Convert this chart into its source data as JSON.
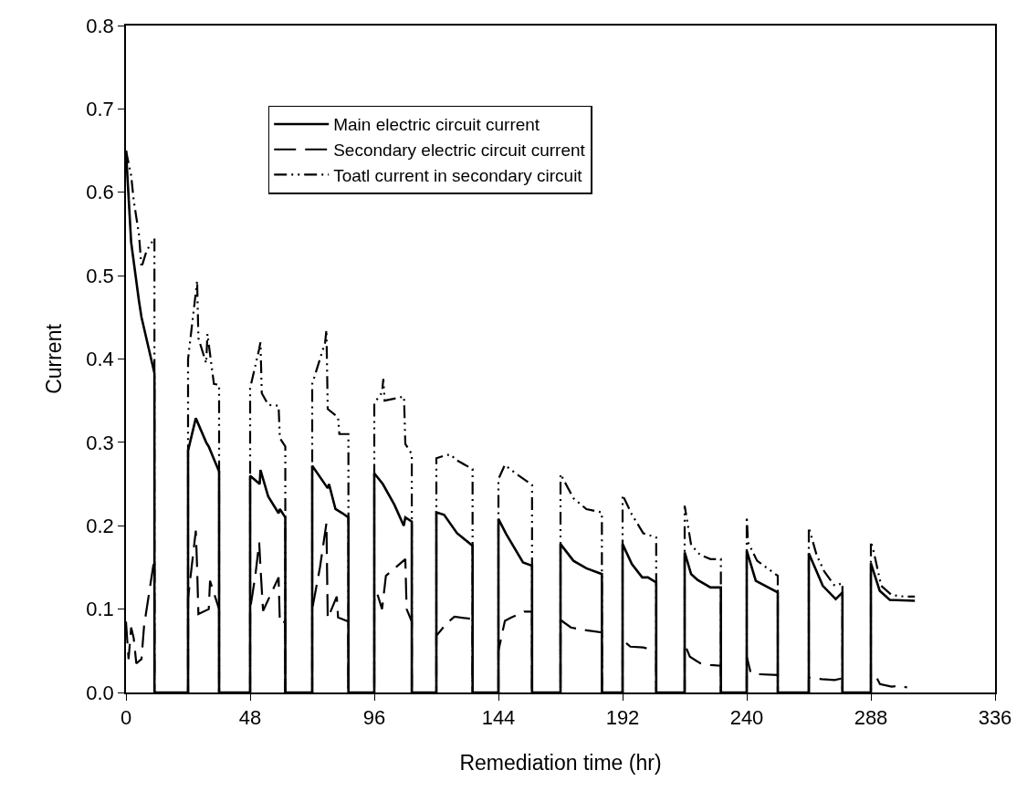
{
  "chart_data": {
    "type": "line",
    "xlabel": "Remediation time (hr)",
    "ylabel": "Current",
    "xlim": [
      0,
      336
    ],
    "xticks": [
      0,
      48,
      96,
      144,
      192,
      240,
      288,
      336
    ],
    "ylim": [
      0,
      0.8
    ],
    "yticks": [
      {
        "value": 0,
        "label": "0.0"
      },
      0.1,
      0.2,
      0.3,
      0.4,
      0.5,
      0.6,
      0.7,
      0.8
    ],
    "legend": "top",
    "marker": "none",
    "series": [
      {
        "name": "Main electric circuit current",
        "color": "#000000",
        "line_style": "solid",
        "x": [
          0,
          2,
          5,
          6,
          11,
          11,
          24,
          24,
          27,
          31,
          32,
          34,
          36,
          36,
          48,
          48,
          51.7,
          52,
          55,
          59,
          59.5,
          61.6,
          61.6,
          72,
          72,
          78,
          78.5,
          81,
          83.7,
          86,
          86,
          96,
          96,
          99.3,
          103.8,
          107.4,
          108,
          110.5,
          110.5,
          120,
          120,
          123,
          128,
          134,
          134,
          144,
          144,
          147,
          153.5,
          157,
          157,
          168,
          168,
          173,
          178,
          184,
          184,
          192,
          192,
          195.6,
          199.6,
          201.8,
          205,
          205,
          216,
          216,
          218.5,
          221,
          226,
          230,
          230,
          240,
          240,
          243.5,
          252,
          252,
          264,
          264,
          269.4,
          274.4,
          277,
          277,
          288,
          288,
          291.4,
          295.3,
          305
        ],
        "values": [
          0.65,
          0.54,
          0.47,
          0.45,
          0.383,
          0,
          0,
          0.29,
          0.329,
          0.3,
          0.295,
          0.28,
          0.265,
          0,
          0,
          0.26,
          0.25,
          0.267,
          0.235,
          0.215,
          0.22,
          0.21,
          0,
          0,
          0.272,
          0.245,
          0.25,
          0.22,
          0.215,
          0.21,
          0,
          0,
          0.263,
          0.25,
          0.225,
          0.2,
          0.21,
          0.205,
          0,
          0,
          0.216,
          0.213,
          0.191,
          0.176,
          0,
          0,
          0.208,
          0.19,
          0.156,
          0.152,
          0,
          0,
          0.178,
          0.158,
          0.149,
          0.142,
          0,
          0,
          0.178,
          0.154,
          0.138,
          0.138,
          0.132,
          0,
          0,
          0.168,
          0.142,
          0.135,
          0.126,
          0.126,
          0,
          0,
          0.17,
          0.134,
          0.12,
          0,
          0,
          0.167,
          0.128,
          0.112,
          0.12,
          0,
          0,
          0.155,
          0.122,
          0.111,
          0.11
        ]
      },
      {
        "name": "Secondary electric circuit current",
        "color": "#000000",
        "line_style": "dashed",
        "x": [
          0,
          1,
          2,
          3,
          4,
          6,
          7,
          11,
          11,
          24,
          24,
          25,
          27,
          27.5,
          28,
          32,
          32.5,
          36,
          36,
          48,
          48,
          50,
          51.5,
          52,
          53,
          59,
          59.5,
          61.6,
          61.6,
          72,
          72,
          75,
          77.5,
          78,
          81.5,
          82,
          86,
          86,
          96,
          96,
          97,
          99,
          100.5,
          108,
          108.5,
          110.5,
          110.5,
          120,
          120,
          124,
          127,
          134,
          134,
          144,
          144,
          146.5,
          149,
          154,
          157,
          157,
          168,
          168,
          172,
          177,
          184,
          184,
          192,
          192,
          195,
          200,
          205,
          205,
          216,
          216,
          218,
          222,
          226,
          230,
          230,
          240,
          240,
          241.5,
          244,
          252,
          252,
          264,
          264,
          269,
          274,
          277,
          277,
          288,
          288,
          289.5,
          291.5,
          296,
          299,
          302
        ],
        "values": [
          0.085,
          0.04,
          0.078,
          0.065,
          0.035,
          0.04,
          0.08,
          0.161,
          0,
          0,
          0.113,
          0.14,
          0.194,
          0.15,
          0.094,
          0.1,
          0.134,
          0.1,
          0,
          0,
          0.1,
          0.14,
          0.18,
          0.15,
          0.098,
          0.138,
          0.083,
          0.085,
          0,
          0,
          0.1,
          0.15,
          0.203,
          0.089,
          0.115,
          0.09,
          0.085,
          0,
          0,
          0.11,
          0.12,
          0.1,
          0.14,
          0.16,
          0.1,
          0.085,
          0,
          0,
          0.068,
          0.083,
          0.091,
          0.088,
          0,
          0,
          0.05,
          0.086,
          0.09,
          0.097,
          0.097,
          0,
          0,
          0.087,
          0.078,
          0.075,
          0.072,
          0,
          0,
          0.063,
          0.055,
          0.054,
          0.05,
          0,
          0,
          0.058,
          0.043,
          0.035,
          0.033,
          0.032,
          0,
          0,
          0.043,
          0.024,
          0.022,
          0.021,
          0,
          0,
          0.018,
          0.016,
          0.015,
          0.017,
          0,
          0,
          0.022,
          0.022,
          0.01,
          0.007,
          0.008,
          0.006
        ]
      },
      {
        "name": "Toatl current in secondary circuit",
        "color": "#000000",
        "line_style": "dashdotdot",
        "x": [
          0,
          2,
          3,
          5,
          6,
          8,
          11,
          11,
          24,
          24,
          25.5,
          27,
          27.5,
          28,
          31,
          31.5,
          34,
          36,
          36,
          48,
          48,
          51.5,
          52,
          52.5,
          55,
          59,
          59.5,
          61.6,
          61.6,
          72,
          72,
          77,
          77.5,
          78,
          82,
          82.5,
          86,
          86,
          96,
          96,
          99,
          99.5,
          100,
          107.5,
          108,
          110.5,
          110.5,
          120,
          120,
          124,
          126,
          127,
          134,
          134,
          144,
          144,
          146.5,
          151,
          157,
          157,
          168,
          168,
          173,
          178,
          184,
          184,
          192,
          192,
          195.5,
          200,
          205,
          205,
          216,
          216,
          218.5,
          222,
          226,
          230,
          230,
          240,
          240,
          240.5,
          244,
          252,
          252,
          264,
          264,
          267,
          270,
          274,
          277,
          277,
          288,
          288,
          289,
          292,
          296,
          301,
          305
        ],
        "values": [
          0.65,
          0.62,
          0.59,
          0.55,
          0.51,
          0.53,
          0.545,
          0,
          0,
          0.4,
          0.44,
          0.48,
          0.494,
          0.425,
          0.395,
          0.43,
          0.37,
          0.369,
          0,
          0,
          0.365,
          0.412,
          0.42,
          0.359,
          0.345,
          0.344,
          0.305,
          0.295,
          0,
          0,
          0.37,
          0.42,
          0.435,
          0.34,
          0.33,
          0.31,
          0.31,
          0,
          0,
          0.347,
          0.36,
          0.376,
          0.35,
          0.355,
          0.298,
          0.286,
          0,
          0,
          0.281,
          0.285,
          0.285,
          0.28,
          0.268,
          0,
          0,
          0.256,
          0.273,
          0.262,
          0.249,
          0,
          0,
          0.262,
          0.233,
          0.22,
          0.216,
          0,
          0,
          0.237,
          0.214,
          0.191,
          0.186,
          0,
          0,
          0.224,
          0.177,
          0.165,
          0.16,
          0.16,
          0,
          0,
          0.211,
          0.18,
          0.158,
          0.14,
          0,
          0,
          0.198,
          0.165,
          0.145,
          0.128,
          0.131,
          0,
          0,
          0.181,
          0.17,
          0.128,
          0.117,
          0.115,
          0.115
        ]
      }
    ]
  }
}
